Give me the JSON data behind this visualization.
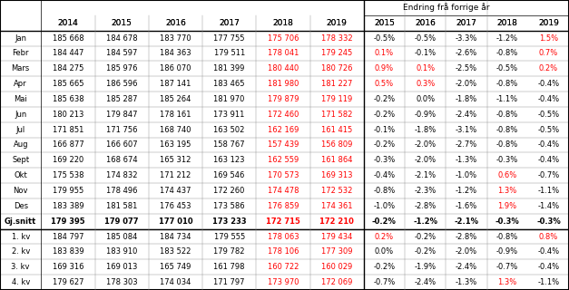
{
  "header_row1": [
    "",
    "",
    "",
    "",
    "",
    "",
    "",
    "Endring frå forrige år",
    "",
    "",
    "",
    ""
  ],
  "header_row2": [
    "",
    "2014",
    "2015",
    "2016",
    "2017",
    "2018",
    "2019",
    "2015",
    "2016",
    "2017",
    "2018",
    "2019"
  ],
  "rows": [
    [
      "Jan",
      "185 668",
      "184 678",
      "183 770",
      "177 755",
      "175 706",
      "178 332",
      "-0.5%",
      "-0.5%",
      "-3.3%",
      "-1.2%",
      "1.5%"
    ],
    [
      "Febr",
      "184 447",
      "184 597",
      "184 363",
      "179 511",
      "178 041",
      "179 245",
      "0.1%",
      "-0.1%",
      "-2.6%",
      "-0.8%",
      "0.7%"
    ],
    [
      "Mars",
      "184 275",
      "185 976",
      "186 070",
      "181 399",
      "180 440",
      "180 726",
      "0.9%",
      "0.1%",
      "-2.5%",
      "-0.5%",
      "0.2%"
    ],
    [
      "Apr",
      "185 665",
      "186 596",
      "187 141",
      "183 465",
      "181 980",
      "181 227",
      "0.5%",
      "0.3%",
      "-2.0%",
      "-0.8%",
      "-0.4%"
    ],
    [
      "Mai",
      "185 638",
      "185 287",
      "185 264",
      "181 970",
      "179 879",
      "179 119",
      "-0.2%",
      "0.0%",
      "-1.8%",
      "-1.1%",
      "-0.4%"
    ],
    [
      "Jun",
      "180 213",
      "179 847",
      "178 161",
      "173 911",
      "172 460",
      "171 582",
      "-0.2%",
      "-0.9%",
      "-2.4%",
      "-0.8%",
      "-0.5%"
    ],
    [
      "Jul",
      "171 851",
      "171 756",
      "168 740",
      "163 502",
      "162 169",
      "161 415",
      "-0.1%",
      "-1.8%",
      "-3.1%",
      "-0.8%",
      "-0.5%"
    ],
    [
      "Aug",
      "166 877",
      "166 607",
      "163 195",
      "158 767",
      "157 439",
      "156 809",
      "-0.2%",
      "-2.0%",
      "-2.7%",
      "-0.8%",
      "-0.4%"
    ],
    [
      "Sept",
      "169 220",
      "168 674",
      "165 312",
      "163 123",
      "162 559",
      "161 864",
      "-0.3%",
      "-2.0%",
      "-1.3%",
      "-0.3%",
      "-0.4%"
    ],
    [
      "Okt",
      "175 538",
      "174 832",
      "171 212",
      "169 546",
      "170 573",
      "169 313",
      "-0.4%",
      "-2.1%",
      "-1.0%",
      "0.6%",
      "-0.7%"
    ],
    [
      "Nov",
      "179 955",
      "178 496",
      "174 437",
      "172 260",
      "174 478",
      "172 532",
      "-0.8%",
      "-2.3%",
      "-1.2%",
      "1.3%",
      "-1.1%"
    ],
    [
      "Des",
      "183 389",
      "181 581",
      "176 453",
      "173 586",
      "176 859",
      "174 361",
      "-1.0%",
      "-2.8%",
      "-1.6%",
      "1.9%",
      "-1.4%"
    ]
  ],
  "gjsnitt_row": [
    "Gj.snitt",
    "179 395",
    "179 077",
    "177 010",
    "173 233",
    "172 715",
    "172 210",
    "-0.2%",
    "-1.2%",
    "-2.1%",
    "-0.3%",
    "-0.3%"
  ],
  "kv_rows": [
    [
      "1. kv",
      "184 797",
      "185 084",
      "184 734",
      "179 555",
      "178 063",
      "179 434",
      "0.2%",
      "-0.2%",
      "-2.8%",
      "-0.8%",
      "0.8%"
    ],
    [
      "2. kv",
      "183 839",
      "183 910",
      "183 522",
      "179 782",
      "178 106",
      "177 309",
      "0.0%",
      "-0.2%",
      "-2.0%",
      "-0.9%",
      "-0.4%"
    ],
    [
      "3. kv",
      "169 316",
      "169 013",
      "165 749",
      "161 798",
      "160 722",
      "160 029",
      "-0.2%",
      "-1.9%",
      "-2.4%",
      "-0.7%",
      "-0.4%"
    ],
    [
      "4. kv",
      "179 627",
      "178 303",
      "174 034",
      "171 797",
      "173 970",
      "172 069",
      "-0.7%",
      "-2.4%",
      "-1.3%",
      "1.3%",
      "-1.1%"
    ]
  ],
  "col_2018_color": "#ff0000",
  "col_2019_color": "#ff0000",
  "pct_red_color": "#ff0000",
  "pct_black_color": "#000000",
  "header_bg": "#ffffff",
  "row_bg_white": "#ffffff",
  "border_color": "#000000",
  "thick_border_color": "#000000"
}
